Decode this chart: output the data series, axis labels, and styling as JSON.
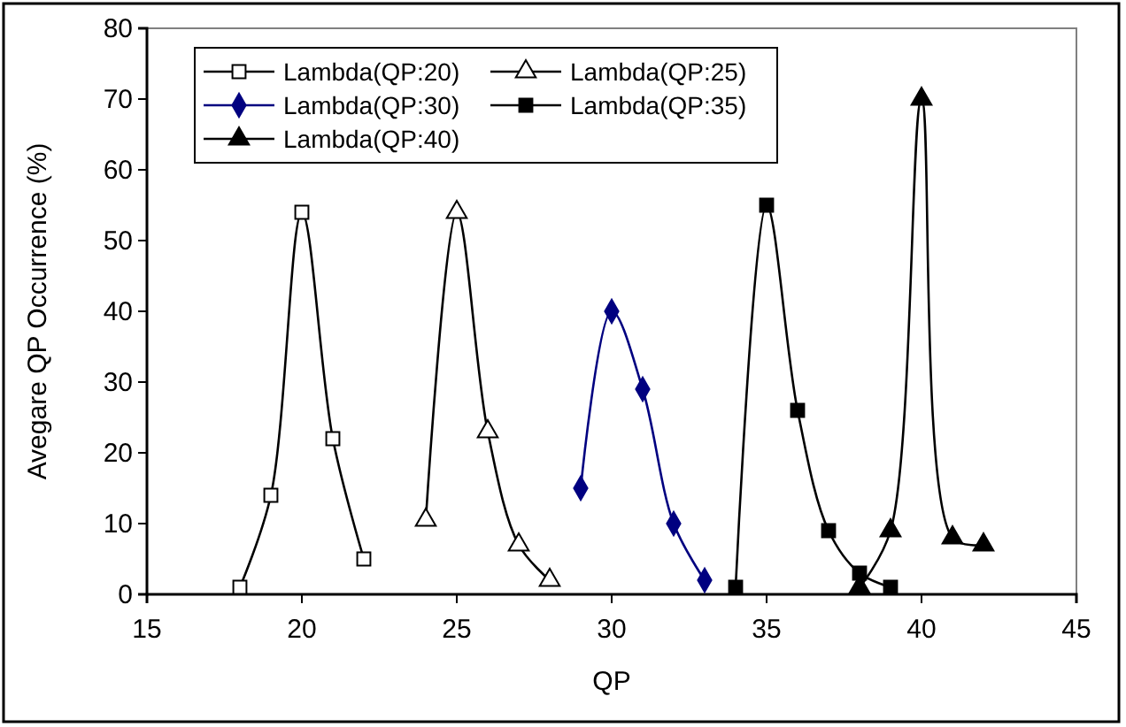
{
  "chart_data": {
    "type": "line",
    "xlabel": "QP",
    "ylabel": "Avegare QP Occurrence (%)",
    "xlim": [
      15,
      45
    ],
    "xticks": [
      15,
      20,
      25,
      30,
      35,
      40,
      45
    ],
    "ylim": [
      0,
      80
    ],
    "yticks": [
      0,
      10,
      20,
      30,
      40,
      50,
      60,
      70,
      80
    ],
    "grid": false,
    "legend": "top left",
    "series": [
      {
        "name": "Lambda(QP:20)",
        "color": "#000000",
        "marker": "square-open",
        "x": [
          18,
          19,
          20,
          21,
          22
        ],
        "values": [
          1,
          14,
          54,
          22,
          5
        ]
      },
      {
        "name": "Lambda(QP:25)",
        "color": "#000000",
        "marker": "triangle-open",
        "x": [
          24,
          25,
          26,
          27,
          28
        ],
        "values": [
          10.5,
          54,
          23,
          7,
          2
        ]
      },
      {
        "name": "Lambda(QP:30)",
        "color": "#000080",
        "marker": "diamond",
        "x": [
          29,
          30,
          31,
          32,
          33
        ],
        "values": [
          15,
          40,
          29,
          10,
          2
        ]
      },
      {
        "name": "Lambda(QP:35)",
        "color": "#000000",
        "marker": "square",
        "x": [
          34,
          35,
          36,
          37,
          38,
          39
        ],
        "values": [
          1,
          55,
          26,
          9,
          3,
          1
        ]
      },
      {
        "name": "Lambda(QP:40)",
        "color": "#000000",
        "marker": "triangle",
        "x": [
          38,
          39,
          40,
          41,
          42
        ],
        "values": [
          1,
          9,
          70,
          8,
          7
        ]
      }
    ]
  }
}
